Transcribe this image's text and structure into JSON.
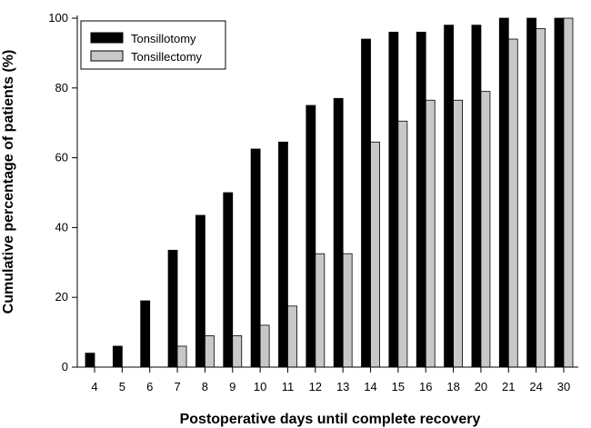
{
  "chart_data": {
    "type": "bar",
    "title": "",
    "xlabel": "Postoperative days until complete recovery",
    "ylabel": "Cumulative percentage of patients (%)",
    "ylim": [
      0,
      100
    ],
    "yticks": [
      "0",
      "20",
      "40",
      "60",
      "80",
      "100"
    ],
    "categories": [
      "4",
      "5",
      "6",
      "7",
      "8",
      "9",
      "10",
      "11",
      "12",
      "13",
      "14",
      "15",
      "16",
      "18",
      "20",
      "21",
      "24",
      "30"
    ],
    "series": [
      {
        "name": "Tonsillotomy",
        "color": "#000000",
        "values": [
          4,
          6,
          19,
          33.5,
          43.5,
          50,
          62.5,
          64.5,
          75,
          77,
          94,
          96,
          96,
          98,
          98,
          100,
          100,
          100
        ]
      },
      {
        "name": "Tonsillectomy",
        "color": "#c8c8c8",
        "values": [
          0,
          0,
          0,
          6,
          9,
          9,
          12,
          17.5,
          32.5,
          32.5,
          64.5,
          70.5,
          76.5,
          76.5,
          79,
          94,
          97,
          100
        ]
      }
    ],
    "legend_position": "top-left",
    "grid": false
  }
}
